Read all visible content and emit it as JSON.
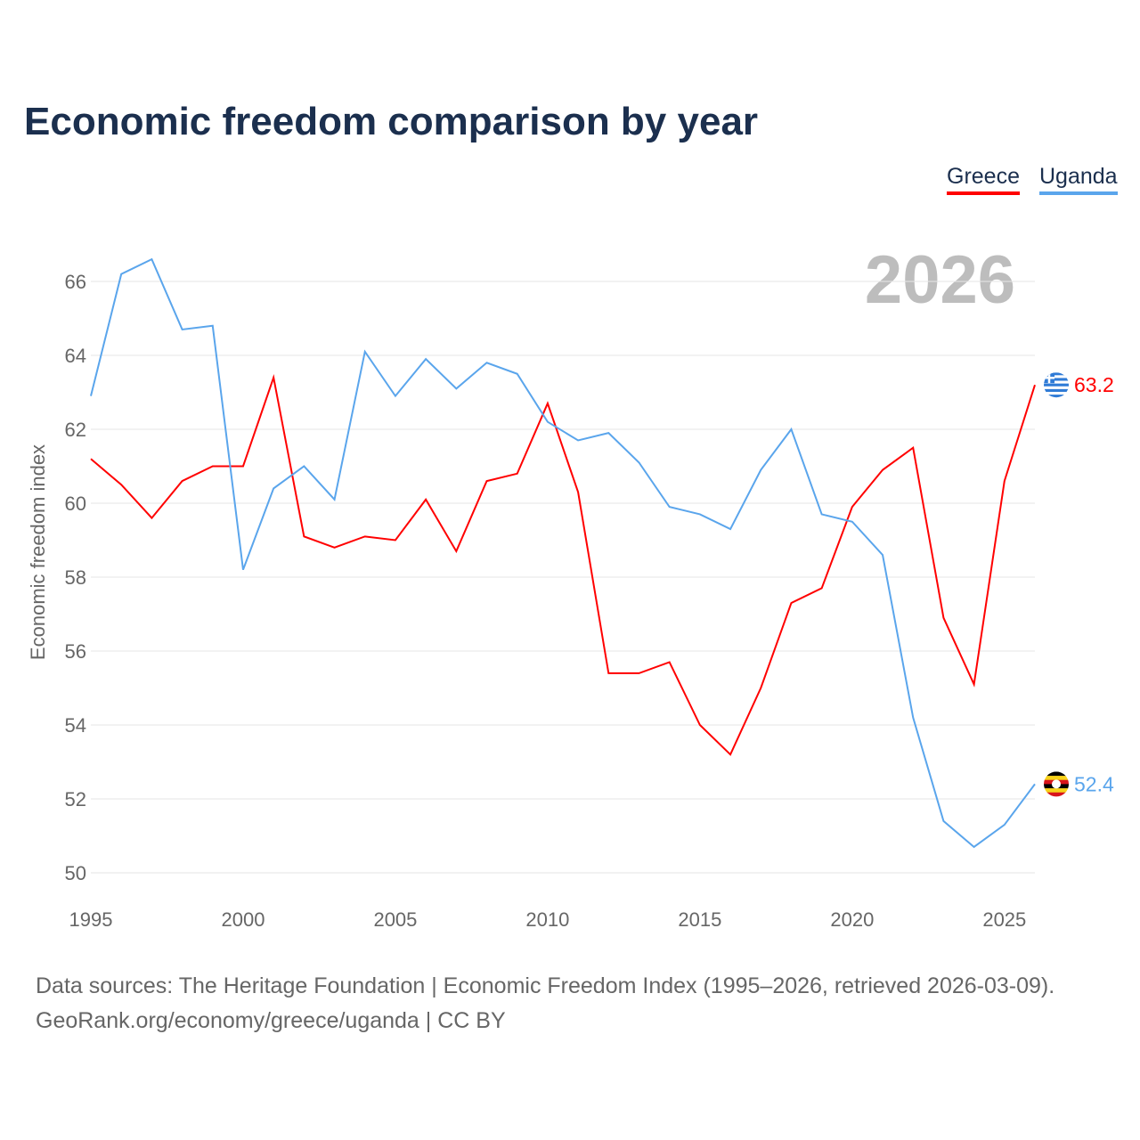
{
  "title": "Economic freedom comparison by year",
  "legend": [
    {
      "name": "Greece",
      "color": "#ff0000"
    },
    {
      "name": "Uganda",
      "color": "#5aa5ec"
    }
  ],
  "year_watermark": "2026",
  "source_line1": "Data sources: The Heritage Foundation | Economic Freedom Index (1995–2026, retrieved 2026-03-09).",
  "source_line2": "GeoRank.org/economy/greece/uganda | CC BY",
  "chart_data": {
    "type": "line",
    "title": "Economic freedom comparison by year",
    "xlabel": "",
    "ylabel": "Economic freedom index",
    "xlim": [
      1995,
      2026
    ],
    "ylim": [
      50,
      67
    ],
    "xticks": [
      1995,
      2000,
      2005,
      2010,
      2015,
      2020,
      2025
    ],
    "yticks": [
      50,
      52,
      54,
      56,
      58,
      60,
      62,
      64,
      66
    ],
    "grid": true,
    "legend_position": "top-right",
    "x": [
      1995,
      1996,
      1997,
      1998,
      1999,
      2000,
      2001,
      2002,
      2003,
      2004,
      2005,
      2006,
      2007,
      2008,
      2009,
      2010,
      2011,
      2012,
      2013,
      2014,
      2015,
      2016,
      2017,
      2018,
      2019,
      2020,
      2021,
      2022,
      2023,
      2024,
      2025,
      2026
    ],
    "series": [
      {
        "name": "Greece",
        "color": "#ff0000",
        "end_label": "63.2",
        "values": [
          61.2,
          60.5,
          59.6,
          60.6,
          61.0,
          61.0,
          63.4,
          59.1,
          58.8,
          59.1,
          59.0,
          60.1,
          58.7,
          60.6,
          60.8,
          62.7,
          60.3,
          55.4,
          55.4,
          55.7,
          54.0,
          53.2,
          55.0,
          57.3,
          57.7,
          59.9,
          60.9,
          61.5,
          56.9,
          55.1,
          60.6,
          63.2
        ]
      },
      {
        "name": "Uganda",
        "color": "#5aa5ec",
        "end_label": "52.4",
        "values": [
          62.9,
          66.2,
          66.6,
          64.7,
          64.8,
          58.2,
          60.4,
          61.0,
          60.1,
          64.1,
          62.9,
          63.9,
          63.1,
          63.8,
          63.5,
          62.2,
          61.7,
          61.9,
          61.1,
          59.9,
          59.7,
          59.3,
          60.9,
          62.0,
          59.7,
          59.5,
          58.6,
          54.2,
          51.4,
          50.7,
          51.3,
          52.4
        ]
      }
    ]
  }
}
